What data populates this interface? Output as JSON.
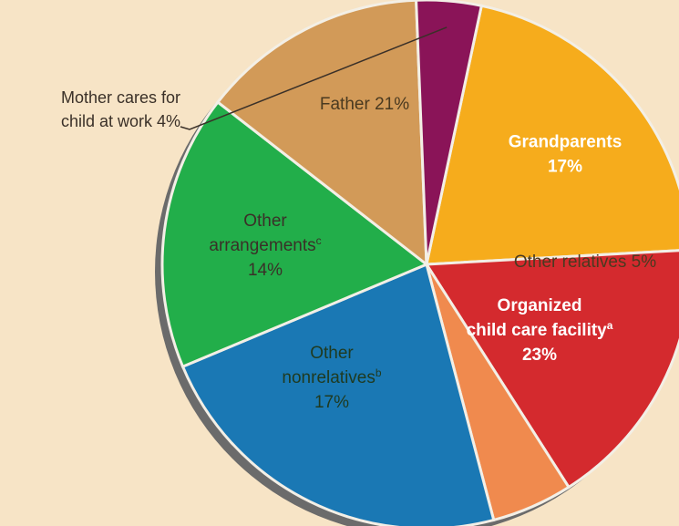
{
  "chart_data": {
    "type": "pie",
    "slices": [
      {
        "label_lines": [
          "Father  21%"
        ],
        "value": 21,
        "color": "#f6ac1c",
        "text_color": "#4a3a20",
        "bold": false
      },
      {
        "label_lines": [
          "Grandparents",
          "17%"
        ],
        "value": 17,
        "color": "#d42a2e",
        "text_color": "#ffffff",
        "bold": true
      },
      {
        "label_lines": [
          "Other relatives  5%"
        ],
        "value": 5,
        "color": "#f08a4e",
        "text_color": "#4a3a20",
        "bold": false
      },
      {
        "label_lines": [
          "Organized",
          "child care facility",
          "23%"
        ],
        "value": 23,
        "color": "#1a78b4",
        "text_color": "#ffffff",
        "bold": true,
        "superscript": "a",
        "superscript_line": 1
      },
      {
        "label_lines": [
          "Other",
          "nonrelatives",
          "17%"
        ],
        "value": 17,
        "color": "#22ae4a",
        "text_color": "#1f3a20",
        "bold": false,
        "superscript": "b",
        "superscript_line": 1
      },
      {
        "label_lines": [
          "Other",
          "arrangements",
          "14%"
        ],
        "value": 14,
        "color": "#d29a58",
        "text_color": "#3a3028",
        "bold": false,
        "superscript": "c",
        "superscript_line": 1
      },
      {
        "label_lines": [
          "Mother cares for",
          "child at work  4%"
        ],
        "value": 4,
        "color": "#8a1458",
        "text_color": "#3a3028",
        "bold": false,
        "outside": true
      }
    ],
    "title": "",
    "legend": "none"
  }
}
